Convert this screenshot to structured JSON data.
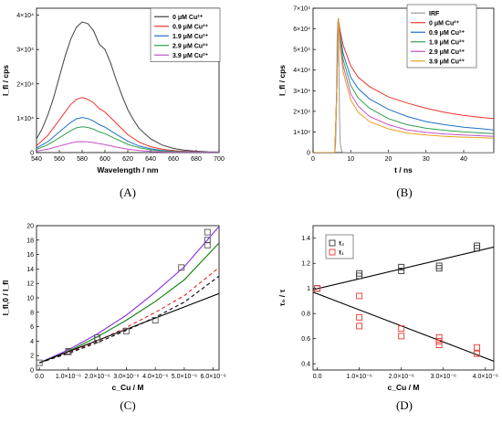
{
  "chart_data": [
    {
      "panel": "A",
      "type": "line",
      "panel_label": "(A)",
      "xlabel": "Wavelength / nm",
      "ylabel": "I_fl / cps",
      "xlim": [
        540,
        700
      ],
      "ylim": [
        0,
        42000
      ],
      "xticks": [
        540,
        560,
        580,
        600,
        620,
        640,
        660,
        680,
        700
      ],
      "yticks": [
        {
          "value": 0,
          "label": "0"
        },
        {
          "value": 10000,
          "label": "1×10⁴"
        },
        {
          "value": 20000,
          "label": "2×10⁴"
        },
        {
          "value": 30000,
          "label": "3×10⁴"
        },
        {
          "value": 40000,
          "label": "4×10⁴"
        }
      ],
      "legend_position": "top-right",
      "series": [
        {
          "name": "0 μM Cu²⁺",
          "color": "#404040",
          "x": [
            540,
            545,
            550,
            555,
            560,
            565,
            570,
            575,
            580,
            585,
            590,
            595,
            600,
            605,
            610,
            615,
            620,
            625,
            630,
            640,
            650,
            660,
            670,
            680,
            690,
            700
          ],
          "y": [
            4000,
            7000,
            11000,
            16000,
            22000,
            28000,
            33000,
            36500,
            38000,
            37500,
            35500,
            31500,
            30000,
            26000,
            21000,
            16500,
            12500,
            9500,
            7000,
            4000,
            2200,
            1200,
            700,
            400,
            250,
            150
          ]
        },
        {
          "name": "0.9 μM Cu²⁺",
          "color": "#e8352b",
          "x": [
            540,
            550,
            560,
            570,
            575,
            580,
            585,
            590,
            595,
            600,
            610,
            620,
            630,
            640,
            650,
            660,
            680,
            700
          ],
          "y": [
            2000,
            5000,
            9500,
            14000,
            15500,
            16000,
            15500,
            14500,
            12800,
            11800,
            8500,
            5200,
            3000,
            1700,
            1000,
            550,
            200,
            80
          ]
        },
        {
          "name": "1.9 μM Cu²⁺",
          "color": "#1f6fc5",
          "x": [
            540,
            550,
            560,
            570,
            575,
            580,
            585,
            590,
            595,
            600,
            610,
            620,
            630,
            640,
            650,
            660,
            680,
            700
          ],
          "y": [
            1300,
            3200,
            6000,
            8800,
            9800,
            10200,
            9900,
            9200,
            8100,
            7400,
            5300,
            3300,
            1900,
            1100,
            650,
            350,
            120,
            50
          ]
        },
        {
          "name": "2.9 μM Cu²⁺",
          "color": "#2ea04b",
          "x": [
            540,
            550,
            560,
            570,
            575,
            580,
            585,
            590,
            595,
            600,
            610,
            620,
            630,
            640,
            650,
            660,
            680,
            700
          ],
          "y": [
            900,
            2300,
            4300,
            6400,
            7200,
            7500,
            7300,
            6800,
            6000,
            5500,
            3900,
            2400,
            1400,
            800,
            480,
            260,
            90,
            40
          ]
        },
        {
          "name": "3.9 μM Cu²⁺",
          "color": "#c552c8",
          "x": [
            540,
            550,
            560,
            570,
            575,
            580,
            585,
            590,
            595,
            600,
            610,
            620,
            630,
            640,
            650,
            660,
            680,
            700
          ],
          "y": [
            400,
            1000,
            1900,
            2800,
            3100,
            3200,
            3100,
            2900,
            2600,
            2300,
            1600,
            1000,
            600,
            350,
            200,
            110,
            40,
            20
          ]
        }
      ]
    },
    {
      "panel": "B",
      "type": "line",
      "panel_label": "(B)",
      "xlabel": "t / ns",
      "ylabel": "I_fl / cps",
      "xlim": [
        0,
        48
      ],
      "ylim": [
        0,
        70000
      ],
      "xticks": [
        0,
        10,
        20,
        30,
        40
      ],
      "yticks": [
        {
          "value": 0,
          "label": "0"
        },
        {
          "value": 10000,
          "label": "1×10⁴"
        },
        {
          "value": 20000,
          "label": "2×10⁴"
        },
        {
          "value": 30000,
          "label": "3×10⁴"
        },
        {
          "value": 40000,
          "label": "4×10⁴"
        },
        {
          "value": 50000,
          "label": "5×10⁴"
        },
        {
          "value": 60000,
          "label": "6×10⁴"
        },
        {
          "value": 70000,
          "label": "7×10⁴"
        }
      ],
      "legend_position": "top-right",
      "series": [
        {
          "name": "IRF",
          "color": "#9a9a9a",
          "x": [
            0,
            5.8,
            6.0,
            6.2,
            6.4,
            6.6,
            6.8,
            7.0,
            7.2,
            7.6,
            8.0,
            48
          ],
          "y": [
            0,
            0,
            5000,
            25000,
            55000,
            64000,
            50000,
            20000,
            5000,
            500,
            0,
            0
          ]
        },
        {
          "name": "0 μM Cu²⁺",
          "color": "#e8352b",
          "x": [
            0,
            5.8,
            6.3,
            6.7,
            7.2,
            8,
            10,
            12,
            15,
            20,
            25,
            30,
            35,
            40,
            45,
            48
          ],
          "y": [
            0,
            0,
            30000,
            65000,
            59000,
            52000,
            42000,
            36500,
            32000,
            27000,
            24000,
            21500,
            19500,
            18000,
            17000,
            16500
          ]
        },
        {
          "name": "0.9 μM Cu²⁺",
          "color": "#1f6fc5",
          "x": [
            0,
            5.8,
            6.3,
            6.7,
            7.2,
            8,
            10,
            12,
            15,
            20,
            25,
            30,
            35,
            40,
            45,
            48
          ],
          "y": [
            0,
            0,
            30000,
            65000,
            57000,
            48000,
            36500,
            31000,
            26000,
            21000,
            17500,
            15000,
            13500,
            12300,
            11500,
            11000
          ]
        },
        {
          "name": "1.9 μM Cu²⁺",
          "color": "#2ea04b",
          "x": [
            0,
            5.8,
            6.3,
            6.7,
            7.2,
            8,
            10,
            12,
            15,
            20,
            25,
            30,
            35,
            40,
            45,
            48
          ],
          "y": [
            0,
            0,
            30000,
            65000,
            55000,
            45000,
            32500,
            26500,
            21500,
            16500,
            13500,
            11800,
            10800,
            10000,
            9500,
            9200
          ]
        },
        {
          "name": "2.9 μM Cu²⁺",
          "color": "#c552c8",
          "x": [
            0,
            5.8,
            6.3,
            6.7,
            7.2,
            8,
            10,
            12,
            15,
            20,
            25,
            30,
            35,
            40,
            45,
            48
          ],
          "y": [
            0,
            0,
            30000,
            65000,
            53000,
            42000,
            28500,
            22500,
            17500,
            13500,
            11000,
            9800,
            9000,
            8500,
            8100,
            7900
          ]
        },
        {
          "name": "3.9 μM Cu²⁺",
          "color": "#e8a020",
          "x": [
            0,
            5.8,
            6.3,
            6.7,
            7.2,
            8,
            10,
            12,
            15,
            20,
            25,
            30,
            35,
            40,
            45,
            48
          ],
          "y": [
            0,
            0,
            30000,
            65000,
            51000,
            39000,
            25500,
            19500,
            15000,
            11500,
            9500,
            8500,
            7900,
            7500,
            7200,
            7000
          ]
        }
      ]
    },
    {
      "panel": "C",
      "type": "scatter",
      "panel_label": "(C)",
      "xlabel": "c_Cu / M",
      "ylabel": "I_fl,0 / I_fl",
      "xlim": [
        -1e-07,
        6.2e-06
      ],
      "ylim": [
        0,
        20
      ],
      "xticks": [
        {
          "value": 0,
          "label": "0.0"
        },
        {
          "value": 1e-06,
          "label": "1.0×10⁻⁶"
        },
        {
          "value": 2e-06,
          "label": "2.0×10⁻⁶"
        },
        {
          "value": 3e-06,
          "label": "3.0×10⁻⁶"
        },
        {
          "value": 4e-06,
          "label": "4.0×10⁻⁶"
        },
        {
          "value": 5e-06,
          "label": "5.0×10⁻⁶"
        },
        {
          "value": 6e-06,
          "label": "6.0×10⁻⁶"
        }
      ],
      "yticks": [
        0,
        2,
        4,
        6,
        8,
        10,
        12,
        14,
        16,
        18,
        20
      ],
      "points": {
        "color": "#555555",
        "x": [
          0,
          1e-06,
          1e-06,
          2e-06,
          2e-06,
          3e-06,
          4e-06,
          4.9e-06,
          5.8e-06,
          5.8e-06,
          5.8e-06
        ],
        "y": [
          1,
          2.5,
          2.6,
          4.2,
          4.5,
          5.4,
          6.9,
          14.2,
          17.3,
          18.0,
          19.1
        ]
      },
      "fits": [
        {
          "color": "#8a2be2",
          "style": "solid",
          "x": [
            0,
            1e-06,
            2e-06,
            3e-06,
            4e-06,
            5e-06,
            6.2e-06
          ],
          "y": [
            1,
            2.8,
            5.0,
            7.6,
            10.8,
            14.3,
            19.9
          ]
        },
        {
          "color": "#0a7d0a",
          "style": "solid",
          "x": [
            0,
            1e-06,
            2e-06,
            3e-06,
            4e-06,
            5e-06,
            6.2e-06
          ],
          "y": [
            1,
            2.6,
            4.6,
            6.9,
            9.5,
            12.5,
            17.6
          ]
        },
        {
          "color": "#e02020",
          "style": "dashed",
          "x": [
            0,
            1e-06,
            2e-06,
            3e-06,
            4e-06,
            5e-06,
            6.2e-06
          ],
          "y": [
            1,
            2.4,
            4.0,
            5.9,
            8.0,
            10.3,
            14.2
          ]
        },
        {
          "color": "#000000",
          "style": "dashed",
          "x": [
            0,
            1e-06,
            2e-06,
            3e-06,
            4e-06,
            5e-06,
            6.2e-06
          ],
          "y": [
            1,
            2.3,
            3.8,
            5.5,
            7.3,
            9.4,
            13.0
          ]
        },
        {
          "color": "#000000",
          "style": "solid",
          "x": [
            0,
            6.2e-06
          ],
          "y": [
            1,
            10.6
          ]
        }
      ]
    },
    {
      "panel": "D",
      "type": "scatter",
      "panel_label": "(D)",
      "xlabel": "c_Cu / M",
      "ylabel": "τ₀ / τ",
      "xlim": [
        -1e-07,
        4.2e-06
      ],
      "ylim": [
        0.35,
        1.5
      ],
      "xticks": [
        {
          "value": 0,
          "label": "0.0"
        },
        {
          "value": 1e-06,
          "label": "1.0×10⁻⁶"
        },
        {
          "value": 2e-06,
          "label": "2.0×10⁻⁶"
        },
        {
          "value": 3e-06,
          "label": "3.0×10⁻⁶"
        },
        {
          "value": 4e-06,
          "label": "4.0×10⁻⁶"
        }
      ],
      "yticks": [
        0.4,
        0.6,
        0.8,
        1.0,
        1.2,
        1.4
      ],
      "legend_position": "top-left",
      "series": [
        {
          "name": "τ₂",
          "color": "#333333",
          "x": [
            0,
            1e-06,
            1e-06,
            2e-06,
            2e-06,
            2.9e-06,
            2.9e-06,
            3.8e-06,
            3.8e-06
          ],
          "y": [
            1.0,
            1.1,
            1.12,
            1.14,
            1.17,
            1.16,
            1.18,
            1.32,
            1.34
          ]
        },
        {
          "name": "τ₁",
          "color": "#e8352b",
          "x": [
            0,
            1e-06,
            1e-06,
            1e-06,
            2e-06,
            2e-06,
            2.9e-06,
            2.9e-06,
            2.9e-06,
            3.8e-06,
            3.8e-06
          ],
          "y": [
            1.0,
            0.94,
            0.77,
            0.7,
            0.68,
            0.62,
            0.61,
            0.58,
            0.55,
            0.53,
            0.48
          ]
        }
      ],
      "fits": [
        {
          "color": "#000000",
          "style": "solid",
          "x": [
            -1e-07,
            4.2e-06
          ],
          "y": [
            0.99,
            1.33
          ]
        },
        {
          "color": "#000000",
          "style": "solid",
          "x": [
            -1e-07,
            4.2e-06
          ],
          "y": [
            0.97,
            0.42
          ]
        }
      ]
    }
  ]
}
